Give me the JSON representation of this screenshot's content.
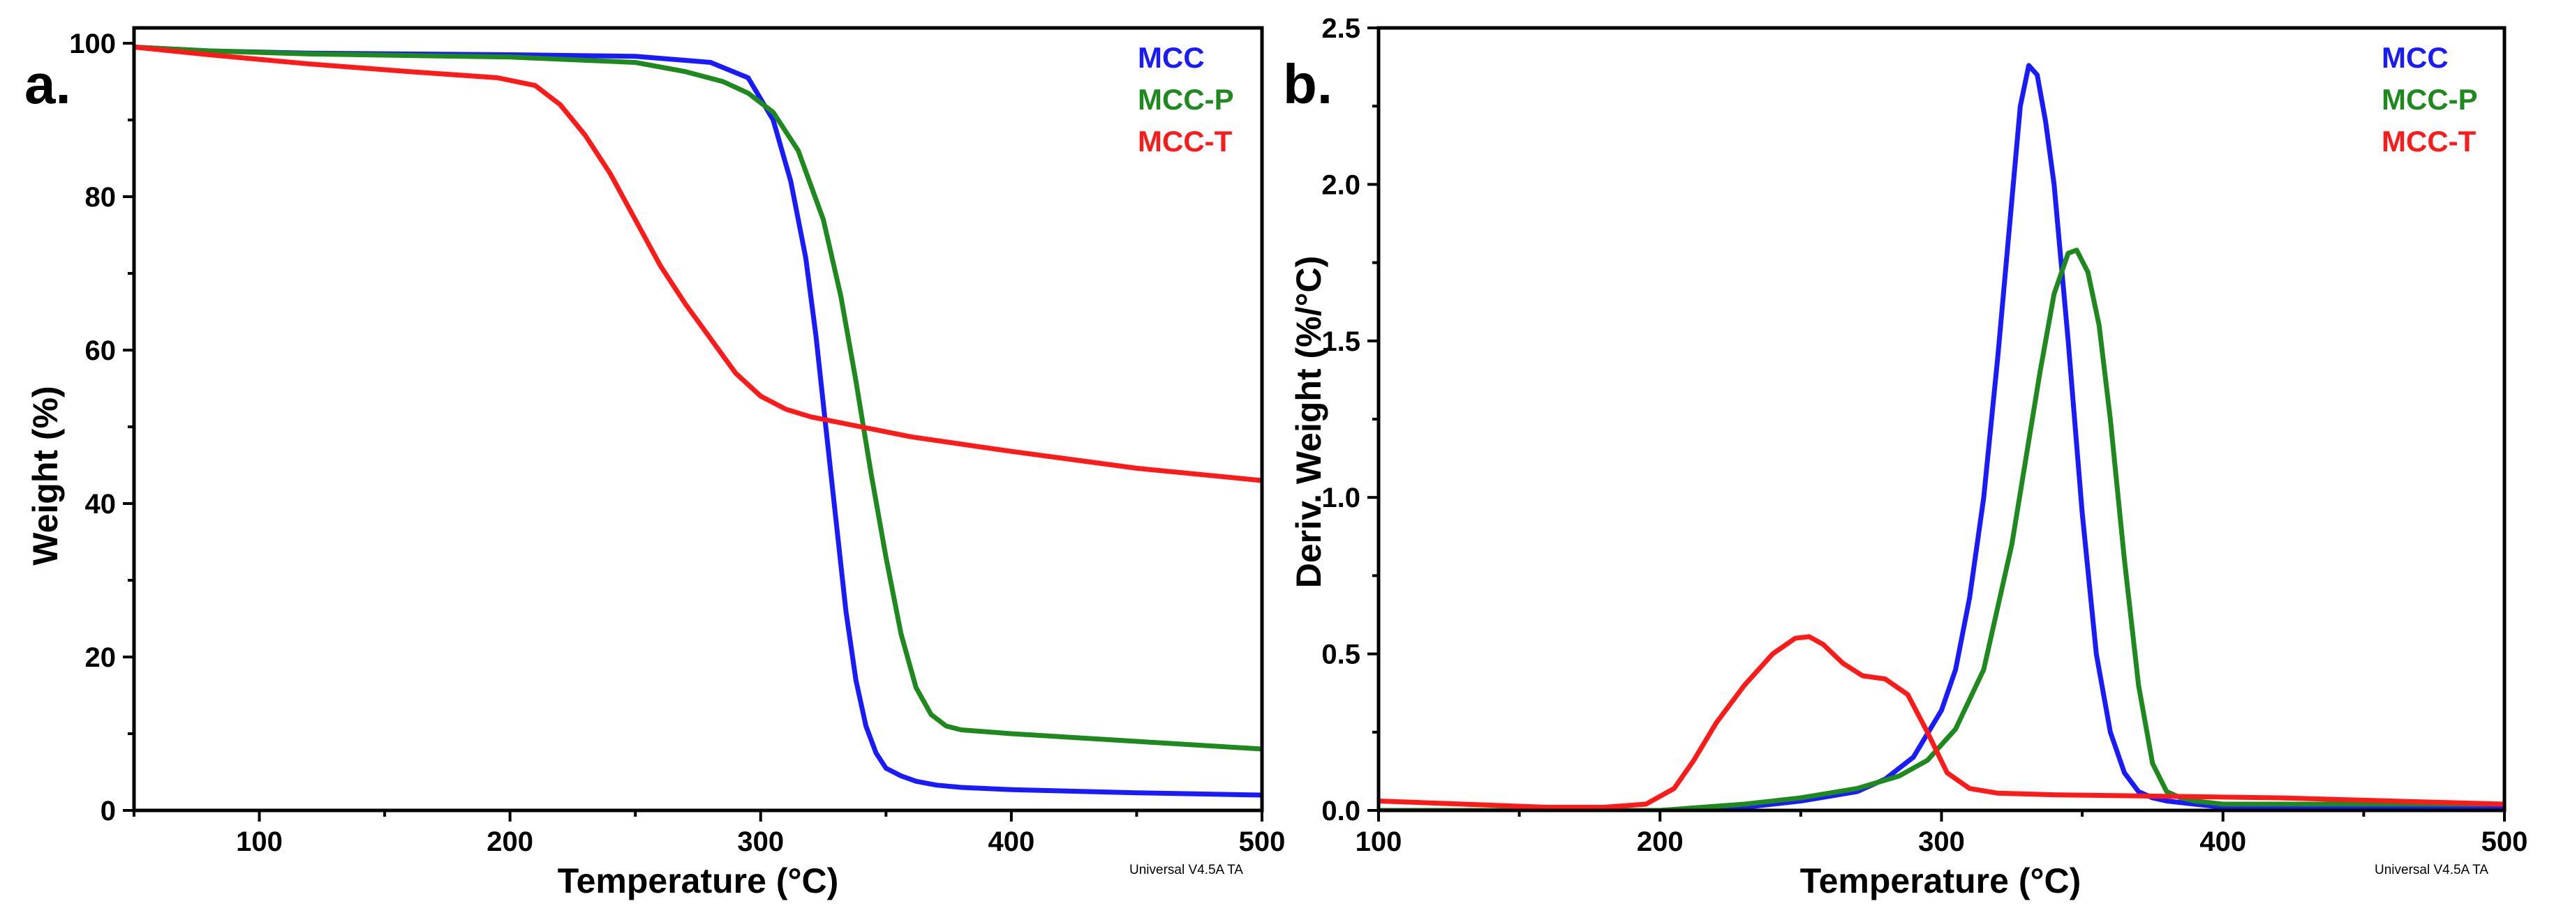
{
  "colors": {
    "MCC": "#1a1aff",
    "MCC-P": "#1e8a1e",
    "MCC-T": "#ff1a1a"
  },
  "chart_data": [
    {
      "type": "line",
      "panel_label": "a.",
      "xlabel": "Temperature (°C)",
      "ylabel": "Weight (%)",
      "xlim": [
        50,
        500
      ],
      "ylim": [
        0,
        102
      ],
      "xticks": [
        100,
        200,
        300,
        400,
        500
      ],
      "yticks": [
        0,
        20,
        40,
        60,
        80,
        100
      ],
      "xtick_labels": [
        "100",
        "200",
        "300",
        "400",
        "500"
      ],
      "ytick_labels": [
        "0",
        "20",
        "40",
        "60",
        "80",
        "100"
      ],
      "legend_position": "top-right",
      "footer": "Universal V4.5A TA",
      "series": [
        {
          "name": "MCC",
          "color": "#1a1aff",
          "x": [
            50,
            80,
            120,
            200,
            250,
            280,
            295,
            305,
            312,
            318,
            322,
            326,
            330,
            334,
            338,
            342,
            346,
            350,
            356,
            362,
            370,
            380,
            400,
            450,
            500
          ],
          "y": [
            99.5,
            99,
            98.7,
            98.5,
            98.3,
            97.5,
            95.5,
            90,
            82,
            72,
            62,
            50,
            38,
            26,
            17,
            11,
            7.5,
            5.5,
            4.5,
            3.8,
            3.3,
            3,
            2.7,
            2.3,
            2
          ]
        },
        {
          "name": "MCC-P",
          "color": "#1e8a1e",
          "x": [
            50,
            80,
            120,
            200,
            250,
            270,
            285,
            295,
            305,
            315,
            325,
            332,
            338,
            344,
            350,
            356,
            362,
            368,
            374,
            380,
            400,
            450,
            500
          ],
          "y": [
            99.5,
            99,
            98.6,
            98.2,
            97.5,
            96.3,
            95,
            93.5,
            91,
            86,
            77,
            67,
            56,
            44,
            33,
            23,
            16,
            12.5,
            11,
            10.5,
            10,
            9,
            8
          ]
        },
        {
          "name": "MCC-T",
          "color": "#ff1a1a",
          "x": [
            50,
            80,
            120,
            160,
            195,
            210,
            220,
            230,
            240,
            250,
            260,
            270,
            280,
            290,
            300,
            310,
            320,
            340,
            360,
            400,
            450,
            500
          ],
          "y": [
            99.5,
            98.5,
            97.3,
            96.3,
            95.5,
            94.5,
            92,
            88,
            83,
            77,
            71,
            66,
            61.5,
            57,
            54,
            52.3,
            51.3,
            50,
            48.7,
            46.8,
            44.6,
            43
          ]
        }
      ]
    },
    {
      "type": "line",
      "panel_label": "b.",
      "xlabel": "Temperature (°C)",
      "ylabel": "Deriv. Weight (%/°C)",
      "xlim": [
        100,
        500
      ],
      "ylim": [
        0,
        2.5
      ],
      "xticks": [
        100,
        200,
        300,
        400,
        500
      ],
      "yticks": [
        0,
        0.5,
        1.0,
        1.5,
        2.0,
        2.5
      ],
      "xtick_labels": [
        "100",
        "200",
        "300",
        "400",
        "500"
      ],
      "ytick_labels": [
        "0.0",
        "0.5",
        "1.0",
        "1.5",
        "2.0",
        "2.5"
      ],
      "legend_position": "top-right",
      "footer": "Universal V4.5A TA",
      "series": [
        {
          "name": "MCC",
          "color": "#1a1aff",
          "x": [
            100,
            150,
            200,
            230,
            250,
            270,
            280,
            290,
            300,
            305,
            310,
            315,
            320,
            325,
            328,
            331,
            334,
            337,
            340,
            345,
            350,
            355,
            360,
            365,
            370,
            375,
            380,
            390,
            400,
            450,
            500
          ],
          "y": [
            0,
            0,
            0,
            0.01,
            0.03,
            0.06,
            0.1,
            0.17,
            0.32,
            0.45,
            0.68,
            1.0,
            1.45,
            1.95,
            2.25,
            2.38,
            2.35,
            2.2,
            2.0,
            1.5,
            0.95,
            0.5,
            0.25,
            0.12,
            0.06,
            0.04,
            0.03,
            0.02,
            0.01,
            0.01,
            0.01
          ]
        },
        {
          "name": "MCC-P",
          "color": "#1e8a1e",
          "x": [
            100,
            150,
            200,
            230,
            250,
            270,
            285,
            295,
            305,
            315,
            325,
            335,
            340,
            345,
            348,
            352,
            356,
            360,
            365,
            370,
            375,
            380,
            385,
            390,
            400,
            450,
            500
          ],
          "y": [
            0,
            0,
            0,
            0.02,
            0.04,
            0.07,
            0.11,
            0.16,
            0.26,
            0.45,
            0.85,
            1.4,
            1.65,
            1.78,
            1.79,
            1.72,
            1.55,
            1.25,
            0.8,
            0.4,
            0.15,
            0.06,
            0.04,
            0.03,
            0.02,
            0.02,
            0.02
          ]
        },
        {
          "name": "MCC-T",
          "color": "#ff1a1a",
          "x": [
            100,
            130,
            160,
            180,
            195,
            205,
            212,
            220,
            230,
            240,
            248,
            253,
            258,
            265,
            272,
            280,
            288,
            295,
            302,
            310,
            320,
            340,
            380,
            420,
            460,
            500
          ],
          "y": [
            0.03,
            0.02,
            0.01,
            0.01,
            0.02,
            0.07,
            0.16,
            0.28,
            0.4,
            0.5,
            0.55,
            0.555,
            0.53,
            0.47,
            0.43,
            0.42,
            0.37,
            0.25,
            0.12,
            0.07,
            0.055,
            0.05,
            0.045,
            0.04,
            0.03,
            0.02
          ]
        }
      ]
    }
  ]
}
